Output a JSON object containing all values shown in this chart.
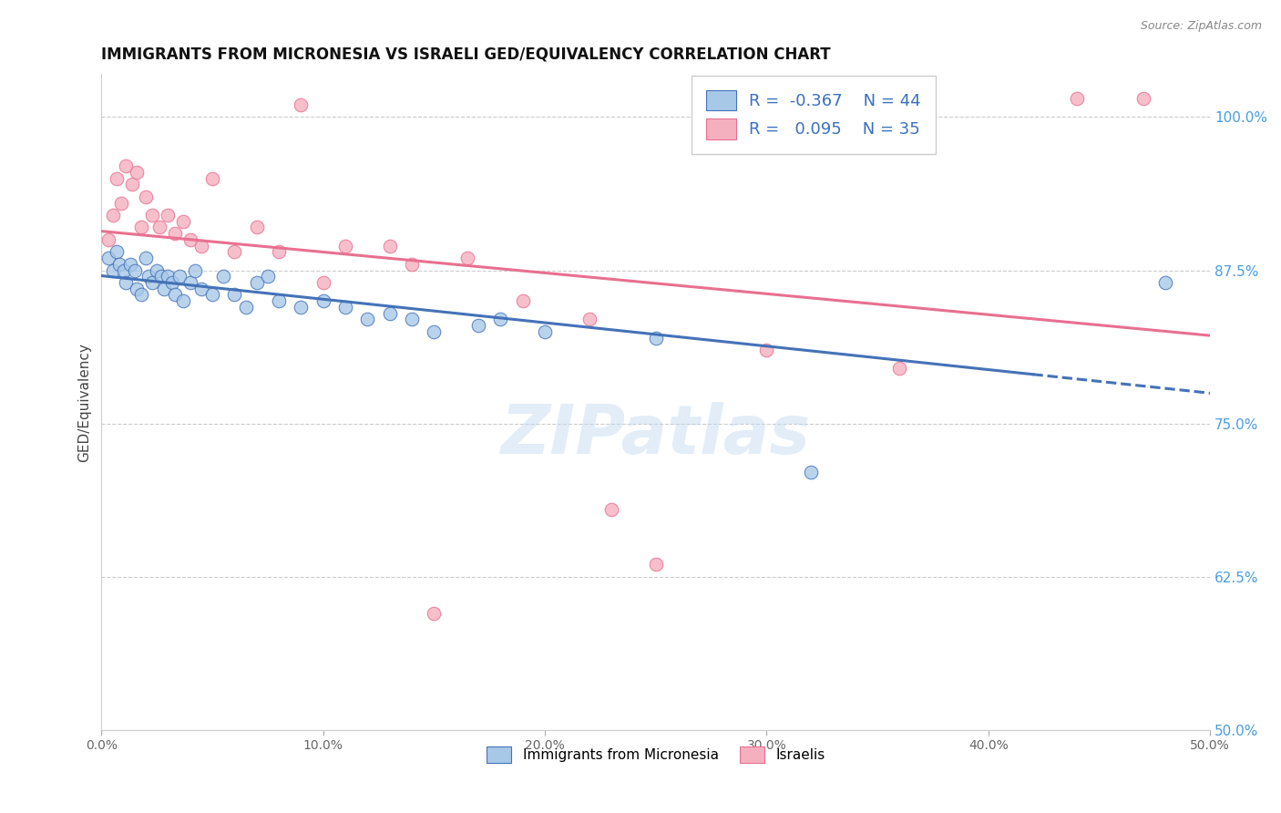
{
  "title": "IMMIGRANTS FROM MICRONESIA VS ISRAELI GED/EQUIVALENCY CORRELATION CHART",
  "source": "Source: ZipAtlas.com",
  "ylabel": "GED/Equivalency",
  "yticks": [
    50.0,
    62.5,
    75.0,
    87.5,
    100.0
  ],
  "ytick_labels": [
    "50.0%",
    "62.5%",
    "75.0%",
    "87.5%",
    "100.0%"
  ],
  "xlim": [
    0.0,
    50.0
  ],
  "ylim": [
    50.0,
    103.5
  ],
  "legend_r_blue": "-0.367",
  "legend_n_blue": "44",
  "legend_r_pink": "0.095",
  "legend_n_pink": "35",
  "blue_color": "#a8c8e8",
  "pink_color": "#f5b0c0",
  "blue_line_color": "#4472b8",
  "pink_line_color": "#e87090",
  "watermark": "ZIPatlas",
  "blue_scatter_x": [
    0.3,
    0.5,
    0.7,
    0.8,
    1.0,
    1.1,
    1.3,
    1.5,
    1.6,
    1.8,
    2.0,
    2.1,
    2.3,
    2.5,
    2.7,
    2.8,
    3.0,
    3.2,
    3.3,
    3.5,
    3.7,
    4.0,
    4.2,
    4.5,
    5.0,
    5.5,
    6.0,
    6.5,
    7.0,
    7.5,
    8.0,
    9.0,
    10.0,
    11.0,
    12.0,
    13.0,
    14.0,
    15.0,
    17.0,
    18.0,
    20.0,
    25.0,
    32.0,
    48.0
  ],
  "blue_scatter_y": [
    88.5,
    87.5,
    89.0,
    88.0,
    87.5,
    86.5,
    88.0,
    87.5,
    86.0,
    85.5,
    88.5,
    87.0,
    86.5,
    87.5,
    87.0,
    86.0,
    87.0,
    86.5,
    85.5,
    87.0,
    85.0,
    86.5,
    87.5,
    86.0,
    85.5,
    87.0,
    85.5,
    84.5,
    86.5,
    87.0,
    85.0,
    84.5,
    85.0,
    84.5,
    83.5,
    84.0,
    83.5,
    82.5,
    83.0,
    83.5,
    82.5,
    82.0,
    71.0,
    86.5
  ],
  "pink_scatter_x": [
    0.3,
    0.5,
    0.7,
    0.9,
    1.1,
    1.4,
    1.6,
    1.8,
    2.0,
    2.3,
    2.6,
    3.0,
    3.3,
    3.7,
    4.0,
    4.5,
    5.0,
    6.0,
    7.0,
    8.0,
    9.0,
    10.0,
    11.0,
    13.0,
    14.0,
    15.0,
    16.5,
    19.0,
    22.0,
    23.0,
    25.0,
    30.0,
    36.0,
    44.0,
    47.0
  ],
  "pink_scatter_y": [
    90.0,
    92.0,
    95.0,
    93.0,
    96.0,
    94.5,
    95.5,
    91.0,
    93.5,
    92.0,
    91.0,
    92.0,
    90.5,
    91.5,
    90.0,
    89.5,
    95.0,
    89.0,
    91.0,
    89.0,
    101.0,
    86.5,
    89.5,
    89.5,
    88.0,
    59.5,
    88.5,
    85.0,
    83.5,
    68.0,
    63.5,
    81.0,
    79.5,
    101.5,
    101.5
  ]
}
